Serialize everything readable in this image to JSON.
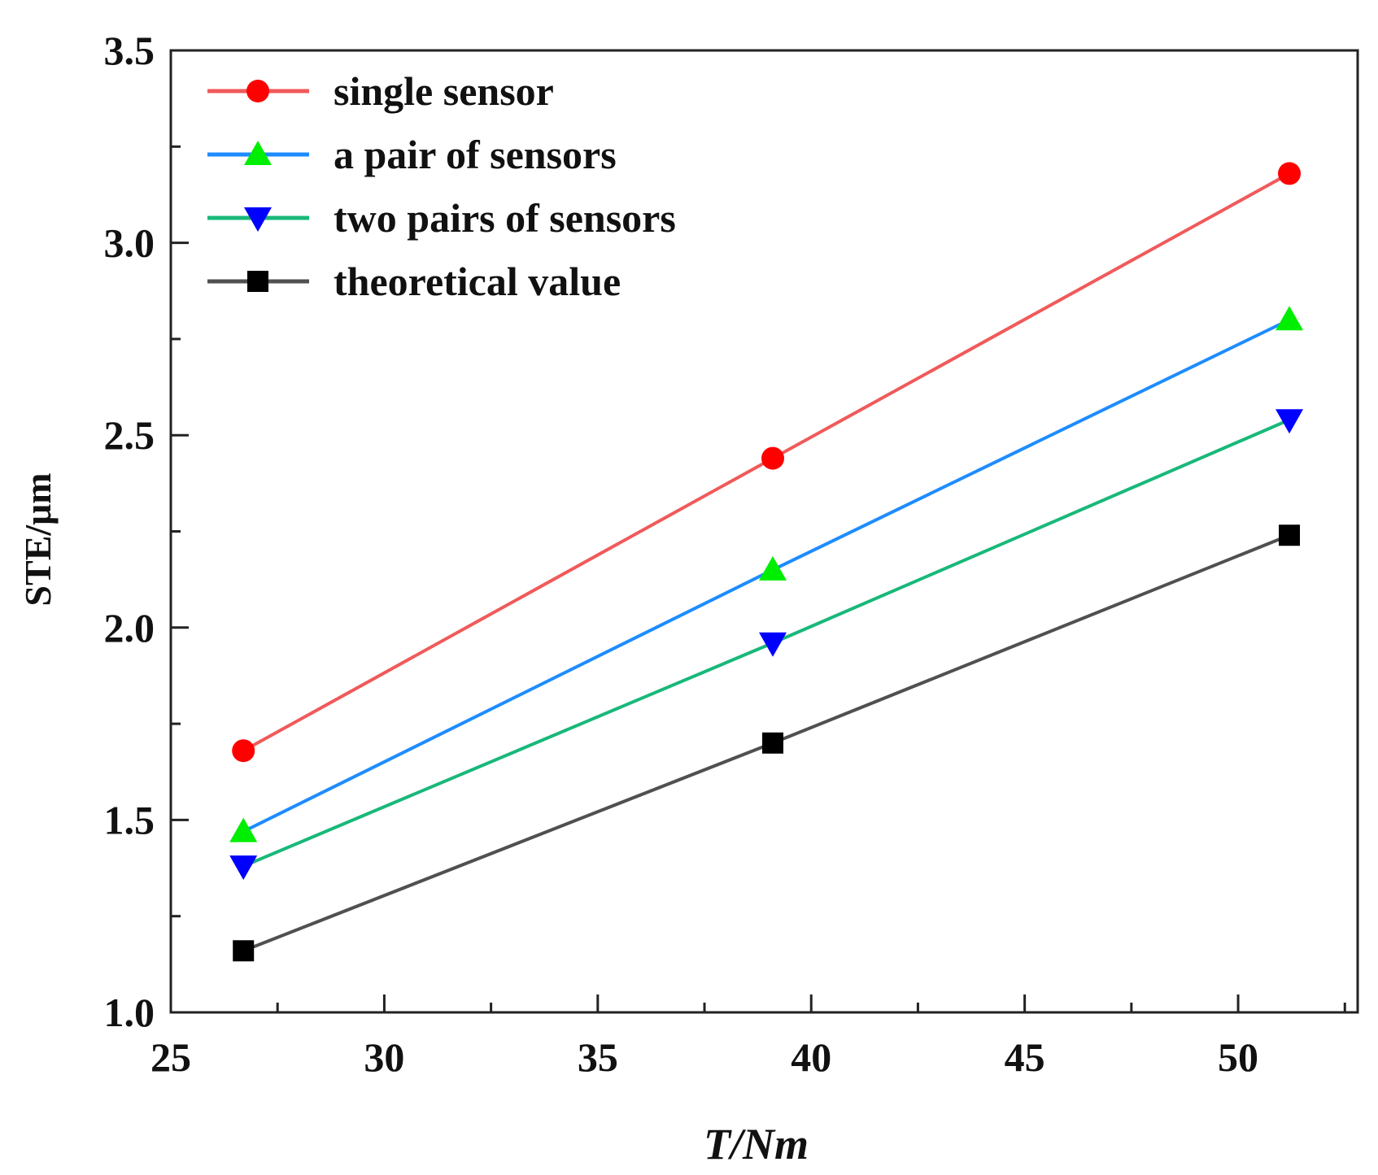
{
  "chart_data": {
    "type": "line",
    "title": "",
    "xlabel": "T/Nm",
    "ylabel": "STE/μm",
    "xlim": [
      25,
      52.8
    ],
    "ylim": [
      1.0,
      3.5
    ],
    "xticks": [
      "25",
      "30",
      "35",
      "40",
      "45",
      "50"
    ],
    "yticks": [
      "1.0",
      "1.5",
      "2.0",
      "2.5",
      "3.0",
      "3.5"
    ],
    "x": [
      26.7,
      39.1,
      51.2
    ],
    "grid": false,
    "legend_position": "top-left",
    "series": [
      {
        "name": "single sensor",
        "values": [
          1.68,
          2.44,
          3.18
        ],
        "line_color": "#f05a5a",
        "marker_color": "#ff0000",
        "marker": "circle"
      },
      {
        "name": "a pair of sensors",
        "values": [
          1.47,
          2.15,
          2.8
        ],
        "line_color": "#1e8cff",
        "marker_color": "#00ee00",
        "marker": "triangle-up"
      },
      {
        "name": "two pairs of sensors",
        "values": [
          1.38,
          1.96,
          2.54
        ],
        "line_color": "#18b87a",
        "marker_color": "#0000ff",
        "marker": "triangle-down"
      },
      {
        "name": "theoretical value",
        "values": [
          1.16,
          1.7,
          2.24
        ],
        "line_color": "#505050",
        "marker_color": "#000000",
        "marker": "square"
      }
    ]
  }
}
